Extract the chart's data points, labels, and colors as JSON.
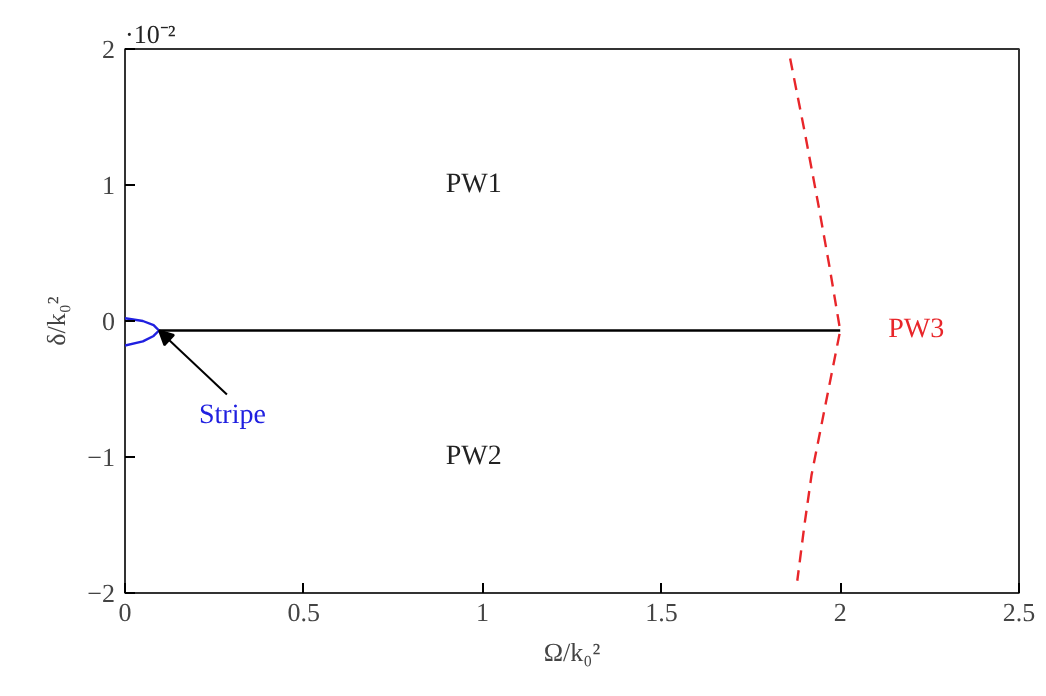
{
  "chart_data": {
    "type": "line",
    "xlabel": "Ω/k₀²",
    "ylabel": "δ/k₀²",
    "xlim": [
      0,
      2.5
    ],
    "ylim": [
      -2,
      2
    ],
    "xticks": [
      0,
      0.5,
      1,
      1.5,
      2,
      2.5
    ],
    "yticks": [
      {
        "value": -2,
        "label": "−2"
      },
      {
        "value": -1,
        "label": "−1"
      },
      0,
      1,
      2
    ],
    "grid": false,
    "marker": "none",
    "series": [
      {
        "color": "#000000",
        "line_style": "solid",
        "x": [
          0.095,
          2.0
        ],
        "values": [
          -0.07,
          -0.07
        ]
      },
      {
        "name": "PW3",
        "color": "#e8262a",
        "line_style": "dashed",
        "x": [
          1.86,
          1.9,
          1.94,
          1.97,
          2.0,
          1.96,
          1.92,
          1.9,
          1.88
        ],
        "values": [
          1.93,
          1.4,
          0.84,
          0.4,
          -0.07,
          -0.6,
          -1.13,
          -1.5,
          -1.91
        ]
      },
      {
        "name": "Stripe",
        "color": "#2020e0",
        "line_style": "solid",
        "x": [
          0,
          0.05,
          0.08,
          0.095,
          0.08,
          0.05,
          0
        ],
        "values": [
          0.02,
          0.0,
          -0.03,
          -0.07,
          -0.11,
          -0.15,
          -0.18
        ]
      }
    ],
    "annotations": [
      "·10⁻²",
      "PW1",
      "PW2"
    ]
  }
}
